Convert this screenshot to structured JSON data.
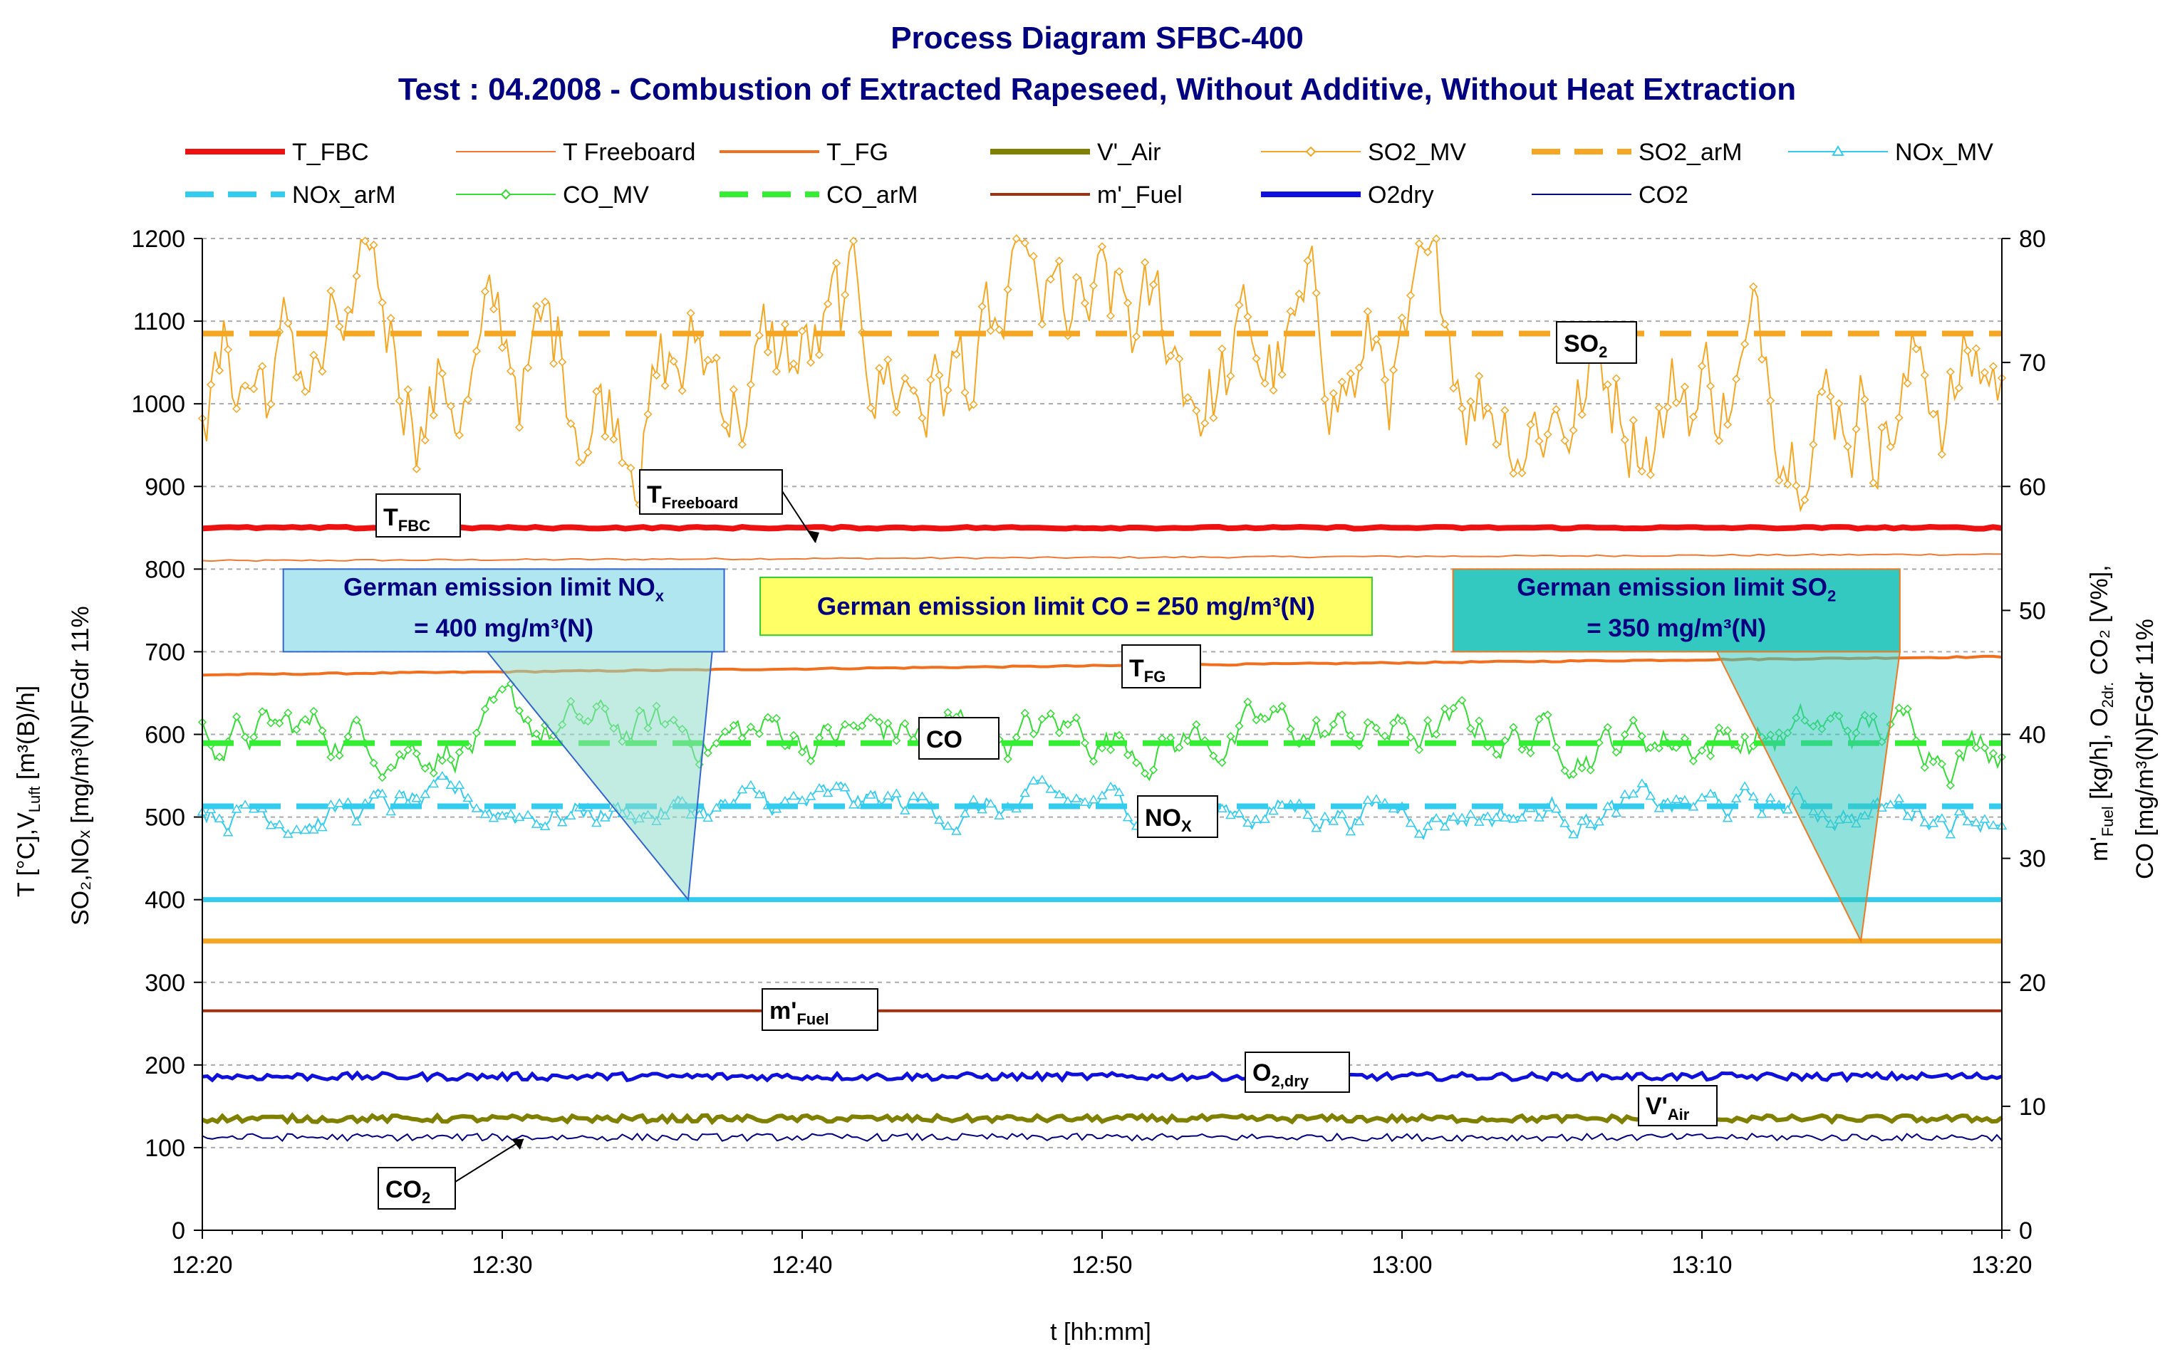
{
  "chart_data": {
    "type": "line",
    "title": "Process Diagram SFBC-400",
    "subtitle": "Test : 04.2008 - Combustion of Extracted Rapeseed, Without Additive, Without Heat Extraction",
    "xlabel": "t [hh:mm]",
    "ylabel_left_line1": "T [°C],V",
    "ylabel_left_sub1": "Luft",
    "ylabel_left_rest1": " [m³(B)/h]",
    "ylabel_left_line2": "SO₂,NOₓ [mg/m³(N)FGdr 11%",
    "ylabel_right_line1": "m'",
    "ylabel_right_sub1": "Fuel",
    "ylabel_right_rest1": " [kg/h], O",
    "ylabel_right_sub2": "2dr.",
    "ylabel_right_rest2": " CO₂ [V%],",
    "ylabel_right_line2": "CO [mg/m³(N)FGdr 11%",
    "x_ticks": [
      "12:20",
      "12:30",
      "12:40",
      "12:50",
      "13:00",
      "13:10",
      "13:20"
    ],
    "x_range_min": [
      0,
      60
    ],
    "y_left_ticks": [
      0,
      100,
      200,
      300,
      400,
      500,
      600,
      700,
      800,
      900,
      1000,
      1100,
      1200
    ],
    "y_left_range": [
      0,
      1200
    ],
    "y_right_ticks": [
      0,
      10,
      20,
      30,
      40,
      50,
      60,
      70,
      80
    ],
    "y_right_range": [
      0,
      80
    ],
    "series": [
      {
        "name": "T_FBC",
        "color": "#ee1111",
        "style": "thick",
        "axis": "left",
        "start": 850,
        "end": 850,
        "noise": 2
      },
      {
        "name": "T Freeboard",
        "color": "#f07830",
        "style": "thin",
        "axis": "left",
        "start": 810,
        "end": 818,
        "noise": 1
      },
      {
        "name": "T_FG",
        "color": "#f07020",
        "style": "medium",
        "axis": "left",
        "start": 672,
        "end": 694,
        "noise": 1
      },
      {
        "name": "V'_Air",
        "color": "#7f7f00",
        "style": "thick",
        "axis": "left",
        "start": 135,
        "end": 135,
        "noise": 5
      },
      {
        "name": "SO2_MV",
        "color": "#f5a623",
        "style": "marker-diamond",
        "axis": "left",
        "mean": 1040,
        "spread": 120,
        "min": 870,
        "max": 1200
      },
      {
        "name": "SO2_arM",
        "color": "#f5a623",
        "style": "dashed",
        "axis": "left",
        "value": 1085
      },
      {
        "name": "NOx_MV",
        "color": "#33ccee",
        "style": "marker-triangle",
        "axis": "left",
        "mean": 510,
        "spread": 25,
        "min": 450,
        "max": 570
      },
      {
        "name": "NOx_arM",
        "color": "#33ccee",
        "style": "dashed",
        "axis": "left",
        "value": 513
      },
      {
        "name": "CO_MV",
        "color": "#33dd33",
        "style": "marker-diamond",
        "axis": "right",
        "mean": 40,
        "spread": 2.5,
        "min": 35,
        "max": 45
      },
      {
        "name": "CO_arM",
        "color": "#33ee33",
        "style": "dashed",
        "axis": "right",
        "value": 39.3
      },
      {
        "name": "m'_Fuel",
        "color": "#a03010",
        "style": "medium",
        "axis": "right",
        "value": 17.7
      },
      {
        "name": "O2dry",
        "color": "#1010dd",
        "style": "thick",
        "axis": "right",
        "mean": 12.4,
        "spread": 0.3
      },
      {
        "name": "CO2",
        "color": "#000080",
        "style": "thin",
        "axis": "right",
        "mean": 7.5,
        "spread": 0.3
      }
    ],
    "limit_lines": [
      {
        "name": "NOx limit",
        "value": 400,
        "color": "#33ccee"
      },
      {
        "name": "SO2 limit",
        "value": 350,
        "color": "#f5a623"
      }
    ],
    "annotations": {
      "t_fbc": {
        "main": "T",
        "sub": "FBC"
      },
      "t_freeboard": {
        "main": "T",
        "sub": "Freeboard"
      },
      "t_fg": {
        "main": "T",
        "sub": "FG"
      },
      "co": {
        "main": "CO"
      },
      "nox": {
        "main": "NO",
        "sub": "X"
      },
      "so2": {
        "main": "SO",
        "sub": "2"
      },
      "m_fuel": {
        "main": "m'",
        "sub": "Fuel"
      },
      "o2dry": {
        "main": "O",
        "sub": "2,dry"
      },
      "v_air": {
        "main": "V'",
        "sub": "Air"
      },
      "co2": {
        "main": "CO",
        "sub": "2"
      }
    },
    "limit_boxes": {
      "nox": {
        "line1": "German emission limit NO",
        "sub": "x",
        "line2": "= 400 mg/m³(N)"
      },
      "co": {
        "line1": "German emission limit CO = 250 mg/m³(N)"
      },
      "so2": {
        "line1": "German emission limit SO",
        "sub": "2",
        "line2": "= 350 mg/m³(N)"
      }
    }
  }
}
